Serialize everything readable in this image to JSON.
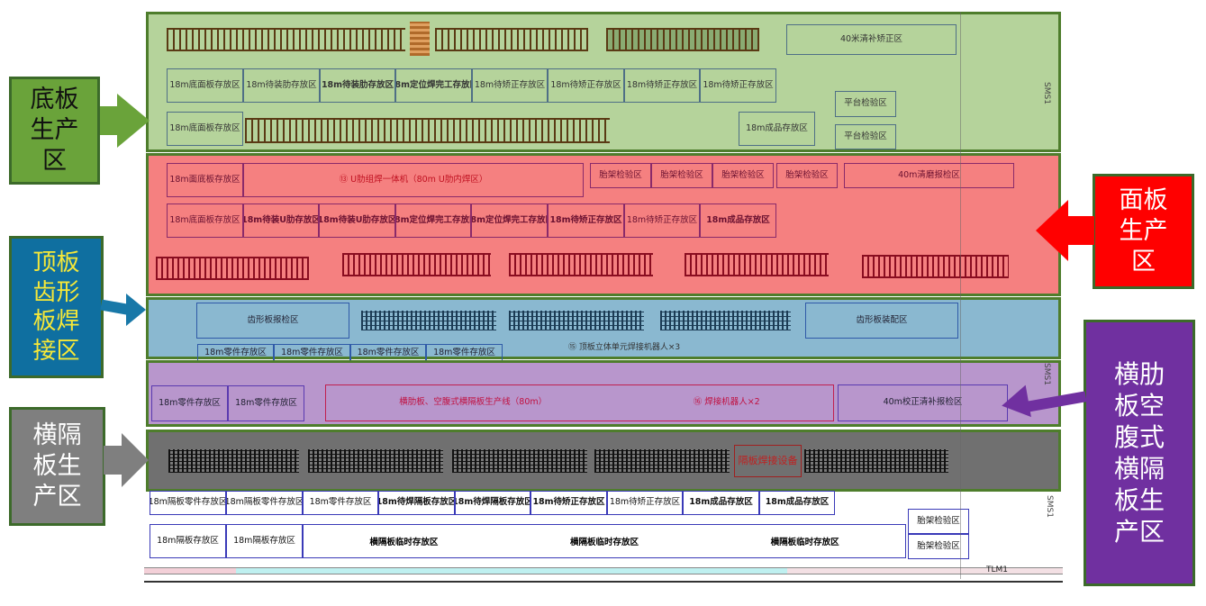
{
  "colors": {
    "floor": "#b5d39b",
    "deck": "#f58080",
    "top": "#8ab8d0",
    "rib": "#b896cc",
    "diaphragm": "#707070",
    "outline": "#4e7d2c"
  },
  "legend": {
    "floor": "底板生产区",
    "deck": "面板生产区",
    "top": "顶板齿形板焊接区",
    "diaphragm": "横隔板生产区",
    "rib": "横肋板空腹式横隔板生产区"
  },
  "floor_zone": {
    "top_area": "40米清补矫正区",
    "row1": [
      "18m底面板存放区",
      "18m待装肋存放区",
      "18m待装肋存放区",
      "18m定位焊完工存放区",
      "18m待矫正存放区",
      "18m待矫正存放区",
      "18m待矫正存放区",
      "18m待矫正存放区"
    ],
    "row2_left": "18m底面板存放区",
    "finished": "18m成品存放区",
    "platform": [
      "平台检验区",
      "平台检验区"
    ],
    "side": "SMS1"
  },
  "deck_zone": {
    "u_rib_line": "⑬ U肋组焊一体机（80m U肋内焊区）",
    "row1_left": "18m面底板存放区",
    "jig": [
      "胎架检验区",
      "胎架检验区",
      "胎架检验区",
      "胎架检验区"
    ],
    "grind": "40m清磨报检区",
    "row2": [
      "18m底面板存放区",
      "18m待装U肋存放区",
      "18m待装U肋存放区",
      "18m定位焊完工存放区",
      "18m定位焊完工存放区",
      "18m待矫正存放区",
      "18m待矫正存放区",
      "18m成品存放区"
    ]
  },
  "top_zone": {
    "inspect": "齿形板报检区",
    "assembly": "齿形板装配区",
    "robot": "⑮ 顶板立体单元焊接机器人×3",
    "parts": [
      "18m零件存放区",
      "18m零件存放区",
      "18m零件存放区",
      "18m零件存放区"
    ]
  },
  "rib_zone": {
    "parts": [
      "18m零件存放区",
      "18m零件存放区"
    ],
    "line": "横肋板、空腹式横隔板生产线（80m）",
    "robot": "⑯ 焊接机器人×2",
    "inspect": "40m校正清补报检区",
    "side": "SMS1"
  },
  "diaphragm_zone": {
    "equipment": "隔板焊接设备",
    "row1": [
      "18m隔板零件存放区",
      "18m隔板零件存放区",
      "18m零件存放区",
      "18m待焊隔板存放区",
      "18m待焊隔板存放区",
      "18m待矫正存放区",
      "18m待矫正存放区",
      "18m成品存放区",
      "18m成品存放区"
    ],
    "row2": [
      "18m隔板存放区",
      "18m隔板存放区",
      "横隔板临时存放区",
      "横隔板临时存放区",
      "横隔板临时存放区"
    ],
    "jig": [
      "胎架检验区",
      "胎架检验区"
    ],
    "side": "SMS1",
    "axis": "TLM1"
  }
}
